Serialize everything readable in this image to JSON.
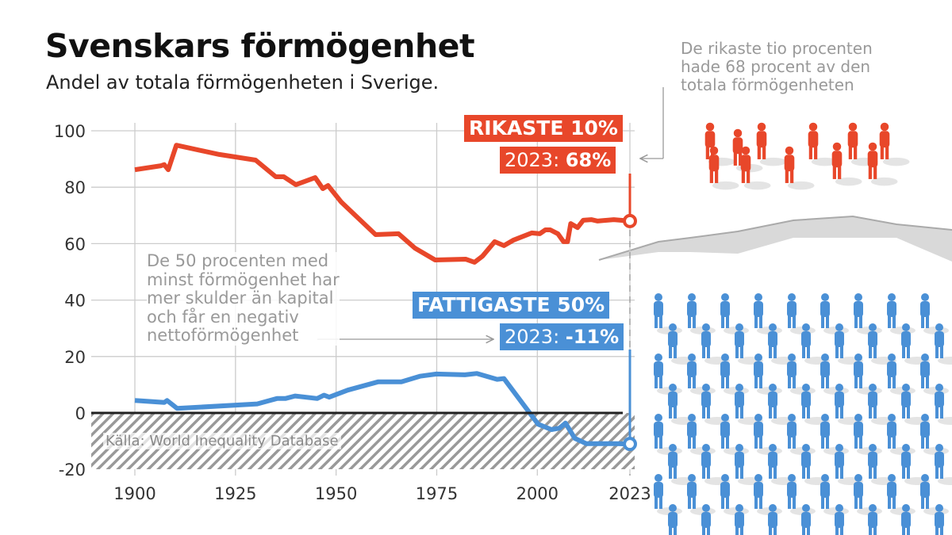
{
  "title": "Svenskars förmögenhet",
  "subtitle": "Andel av totala förmögenheten i Sverige.",
  "source": "Källa: World Inequality Database",
  "annotations": {
    "top": [
      "De rikaste tio procenten",
      "hade 68 procent av den",
      "totala förmögenheten"
    ],
    "bottom": [
      "De 50 procenten med",
      "minst förmögenhet har",
      "mer skulder än kapital",
      "och får en negativ",
      "nettoförmögenhet"
    ]
  },
  "labels": {
    "rich_title": "RIKASTE 10%",
    "rich_year": "2023: ",
    "rich_value": "68%",
    "poor_title": "FATTIGASTE 50%",
    "poor_year": "2023: ",
    "poor_value": "-11%"
  },
  "colors": {
    "rich": "#e8472a",
    "poor": "#4a90d6",
    "grid": "#cccccc",
    "text_gray": "#999999"
  },
  "chart_data": {
    "type": "line",
    "title": "Svenskars förmögenhet",
    "subtitle": "Andel av totala förmögenheten i Sverige.",
    "xlim": [
      1900,
      2023
    ],
    "ylim": [
      -20,
      100
    ],
    "xticks": [
      1900,
      1925,
      1950,
      1975,
      2000,
      2023
    ],
    "yticks": [
      100,
      80,
      60,
      40,
      20,
      0,
      -20
    ],
    "grid": true,
    "negative_region_hatched": true,
    "series": [
      {
        "name": "RIKASTE 10%",
        "color": "#e8472a",
        "points": [
          [
            1900,
            86.2
          ],
          [
            1906.5,
            87.6
          ],
          [
            1907.3,
            88
          ],
          [
            1908.3,
            86.2
          ],
          [
            1910.3,
            94.9
          ],
          [
            1921,
            91.6
          ],
          [
            1930,
            89.6
          ],
          [
            1935,
            83.7
          ],
          [
            1937,
            83.7
          ],
          [
            1940,
            80.9
          ],
          [
            1944.8,
            83.4
          ],
          [
            1946.7,
            79.5
          ],
          [
            1948,
            80.6
          ],
          [
            1951.3,
            74.7
          ],
          [
            1959.8,
            63.2
          ],
          [
            1965.5,
            63.5
          ],
          [
            1969.6,
            58.4
          ],
          [
            1974.6,
            54.2
          ],
          [
            1982.2,
            54.5
          ],
          [
            1984.4,
            53.4
          ],
          [
            1986.4,
            55.6
          ],
          [
            1989.4,
            60.7
          ],
          [
            1991.7,
            59.3
          ],
          [
            1994,
            61.2
          ],
          [
            1998.6,
            63.8
          ],
          [
            2000.6,
            63.5
          ],
          [
            2002,
            64.9
          ],
          [
            2003.2,
            64.9
          ],
          [
            2005.1,
            63.5
          ],
          [
            2006.5,
            60.7
          ],
          [
            2007.5,
            60.7
          ],
          [
            2008.3,
            67.1
          ],
          [
            2010,
            65.7
          ],
          [
            2011.4,
            68.3
          ],
          [
            2013.4,
            68.5
          ],
          [
            2015,
            68
          ],
          [
            2019,
            68.5
          ],
          [
            2023,
            68
          ]
        ]
      },
      {
        "name": "FATTIGASTE 50%",
        "color": "#4a90d6",
        "points": [
          [
            1900,
            4.4
          ],
          [
            1907.3,
            3.7
          ],
          [
            1908,
            4.4
          ],
          [
            1910.5,
            1.6
          ],
          [
            1930.4,
            3.2
          ],
          [
            1935.3,
            5.1
          ],
          [
            1937.4,
            5.1
          ],
          [
            1939.8,
            6.0
          ],
          [
            1945.3,
            5.1
          ],
          [
            1947,
            6.3
          ],
          [
            1948.3,
            5.6
          ],
          [
            1952.9,
            8.1
          ],
          [
            1960.4,
            11.0
          ],
          [
            1966.2,
            11.0
          ],
          [
            1970.8,
            13.0
          ],
          [
            1974.9,
            13.8
          ],
          [
            1982,
            13.5
          ],
          [
            1985,
            14
          ],
          [
            1990,
            11.9
          ],
          [
            1991.7,
            12.2
          ],
          [
            2000.2,
            -4.0
          ],
          [
            2003.5,
            -5.9
          ],
          [
            2005.5,
            -5.4
          ],
          [
            2007,
            -3.6
          ],
          [
            2009.3,
            -9.0
          ],
          [
            2012.2,
            -10.9
          ],
          [
            2019.7,
            -10.9
          ],
          [
            2023,
            -11
          ]
        ]
      }
    ]
  }
}
